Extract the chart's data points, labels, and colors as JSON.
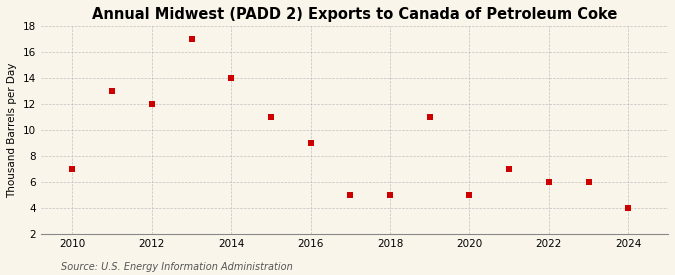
{
  "title": "Annual Midwest (PADD 2) Exports to Canada of Petroleum Coke",
  "ylabel": "Thousand Barrels per Day",
  "source": "Source: U.S. Energy Information Administration",
  "x": [
    2010,
    2011,
    2012,
    2013,
    2014,
    2015,
    2016,
    2017,
    2018,
    2019,
    2020,
    2021,
    2022,
    2023,
    2024
  ],
  "y": [
    7,
    13,
    12,
    17,
    14,
    11,
    9,
    5,
    5,
    11,
    5,
    7,
    6,
    6,
    4
  ],
  "marker_color": "#cc0000",
  "marker": "s",
  "marker_size": 4,
  "xlim": [
    2009.2,
    2025.0
  ],
  "ylim": [
    2,
    18
  ],
  "yticks": [
    2,
    4,
    6,
    8,
    10,
    12,
    14,
    16,
    18
  ],
  "xticks": [
    2010,
    2012,
    2014,
    2016,
    2018,
    2020,
    2022,
    2024
  ],
  "background_color": "#faf5ea",
  "grid_color": "#bbbbbb",
  "title_fontsize": 10.5,
  "label_fontsize": 7.5,
  "tick_fontsize": 7.5,
  "source_fontsize": 7.0
}
